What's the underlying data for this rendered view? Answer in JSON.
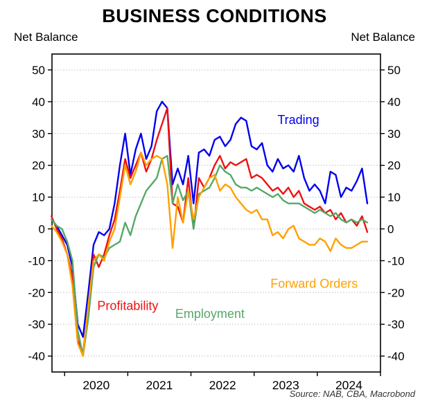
{
  "title": "BUSINESS CONDITIONS",
  "axis_label_left": "Net Balance",
  "axis_label_right": "Net Balance",
  "source": "Source: NAB, CBA, Macrobond",
  "chart_data": {
    "type": "line",
    "title": "BUSINESS CONDITIONS",
    "ylabel": "Net Balance",
    "ylim": [
      -45,
      55
    ],
    "yticks": [
      -40,
      -30,
      -20,
      -10,
      0,
      10,
      20,
      30,
      40,
      50
    ],
    "xlim": [
      2019.8,
      2025.0
    ],
    "xticks": [
      2020,
      2021,
      2022,
      2023,
      2024
    ],
    "xtick_marks": [
      2020,
      2021,
      2022,
      2023,
      2024,
      2025
    ],
    "grid": "horizontal-dotted",
    "grid_color": "#BEBEBE",
    "frame_color": "#000000",
    "x_months": [
      "2019-10",
      "2019-11",
      "2019-12",
      "2020-01",
      "2020-02",
      "2020-03",
      "2020-04",
      "2020-05",
      "2020-06",
      "2020-07",
      "2020-08",
      "2020-09",
      "2020-10",
      "2020-11",
      "2020-12",
      "2021-01",
      "2021-02",
      "2021-03",
      "2021-04",
      "2021-05",
      "2021-06",
      "2021-07",
      "2021-08",
      "2021-09",
      "2021-10",
      "2021-11",
      "2021-12",
      "2022-01",
      "2022-02",
      "2022-03",
      "2022-04",
      "2022-05",
      "2022-06",
      "2022-07",
      "2022-08",
      "2022-09",
      "2022-10",
      "2022-11",
      "2022-12",
      "2023-01",
      "2023-02",
      "2023-03",
      "2023-04",
      "2023-05",
      "2023-06",
      "2023-07",
      "2023-08",
      "2023-09",
      "2023-10",
      "2023-11",
      "2023-12",
      "2024-01",
      "2024-02",
      "2024-03",
      "2024-04",
      "2024-05",
      "2024-06",
      "2024-07",
      "2024-08",
      "2024-09",
      "2024-10"
    ],
    "series": [
      {
        "name": "Trading",
        "color": "#0000EE",
        "values": [
          3,
          1,
          -2,
          -5,
          -12,
          -30,
          -34,
          -20,
          -5,
          -1,
          -2,
          0,
          8,
          20,
          30,
          17,
          25,
          30,
          22,
          26,
          37,
          40,
          38,
          14,
          19,
          14,
          23,
          8,
          24,
          25,
          23,
          28,
          29,
          26,
          28,
          33,
          35,
          34,
          26,
          25,
          27,
          20,
          18,
          22,
          19,
          20,
          18,
          23,
          16,
          12,
          14,
          12,
          8,
          18,
          17,
          10,
          13,
          12,
          15,
          19,
          8
        ]
      },
      {
        "name": "Profitability",
        "color": "#EE1111",
        "values": [
          4,
          0,
          -3,
          -8,
          -15,
          -35,
          -39,
          -25,
          -8,
          -12,
          -8,
          -2,
          3,
          12,
          22,
          16,
          20,
          24,
          18,
          22,
          28,
          33,
          38,
          8,
          7,
          2,
          16,
          0,
          16,
          13,
          16,
          20,
          23,
          19,
          21,
          20,
          21,
          22,
          16,
          17,
          16,
          14,
          12,
          13,
          11,
          13,
          10,
          12,
          8,
          7,
          6,
          7,
          5,
          6,
          3,
          5,
          2,
          3,
          1,
          4,
          -1
        ]
      },
      {
        "name": "Employment",
        "color": "#55A868",
        "values": [
          3,
          1,
          0,
          -4,
          -10,
          -32,
          -40,
          -28,
          -12,
          -8,
          -9,
          -6,
          -5,
          -4,
          2,
          -2,
          4,
          8,
          12,
          14,
          16,
          22,
          23,
          8,
          14,
          9,
          12,
          0,
          11,
          12,
          13,
          16,
          20,
          18,
          17,
          14,
          13,
          13,
          12,
          13,
          12,
          11,
          10,
          11,
          9,
          8,
          8,
          8,
          7,
          6,
          5,
          6,
          5,
          4,
          5,
          3,
          2,
          3,
          2,
          3,
          2
        ]
      },
      {
        "name": "Forward Orders",
        "color": "#FFA000",
        "values": [
          1,
          -1,
          -4,
          -8,
          -18,
          -36,
          -40,
          -24,
          -10,
          -8,
          -10,
          -4,
          0,
          10,
          20,
          14,
          18,
          24,
          20,
          22,
          23,
          22,
          14,
          -6,
          10,
          2,
          12,
          3,
          10,
          13,
          16,
          17,
          12,
          14,
          13,
          10,
          8,
          6,
          5,
          6,
          3,
          3,
          -2,
          -1,
          -3,
          0,
          1,
          -3,
          -4,
          -5,
          -5,
          -3,
          -4,
          -7,
          -3,
          -5,
          -6,
          -6,
          -5,
          -4,
          -4
        ]
      }
    ],
    "annotations": [
      {
        "text": "Trading",
        "x": 2023.7,
        "y": 33,
        "color": "#0000EE"
      },
      {
        "text": "Forward Orders",
        "x": 2023.95,
        "y": -18.5,
        "color": "#FFA000"
      },
      {
        "text": "Profitability",
        "x": 2021.0,
        "y": -25.5,
        "color": "#EE1111"
      },
      {
        "text": "Employment",
        "x": 2022.3,
        "y": -28,
        "color": "#55A868"
      }
    ]
  }
}
